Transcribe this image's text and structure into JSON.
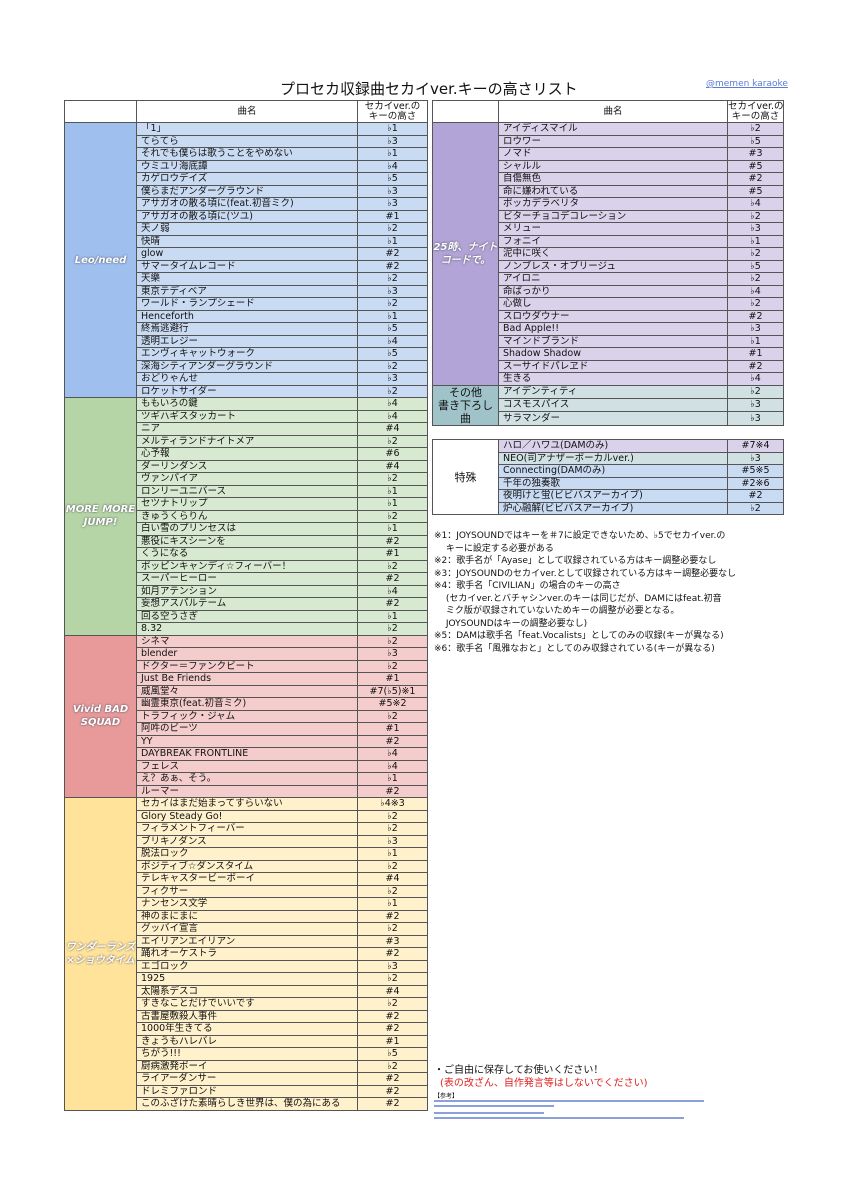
{
  "title": "プロセカ収録曲セカイver.キーの高さリスト",
  "handle": "@memen karaoke",
  "headers": {
    "name": "曲名",
    "key": "セカイver.の\nキーの高さ"
  },
  "colors": {
    "leo": [
      "#9fbfee",
      "#c9daf3"
    ],
    "mmj": [
      "#b5d5a6",
      "#d8e9d1"
    ],
    "vbs": [
      "#e89a9a",
      "#f5cccc"
    ],
    "wxs": [
      "#ffe39a",
      "#fff1cb"
    ],
    "niigo": [
      "#b2a4d6",
      "#d9d2ea"
    ],
    "other": [
      "#9fc3c8",
      "#d1e1e3"
    ]
  },
  "left_groups": [
    {
      "id": "leo",
      "label": "Leo/need",
      "songs": [
        [
          "「1」",
          "♭1"
        ],
        [
          "てらてら",
          "♭3"
        ],
        [
          "それでも僕らは歌うことをやめない",
          "♭1"
        ],
        [
          "ウミユリ海底譚",
          "♭4"
        ],
        [
          "カゲロウデイズ",
          "♭5"
        ],
        [
          "僕らまだアンダーグラウンド",
          "♭3"
        ],
        [
          "アサガオの散る頃に(feat.初音ミク)",
          "♭3"
        ],
        [
          "アサガオの散る頃に(ツユ)",
          "#1"
        ],
        [
          "天ノ弱",
          "♭2"
        ],
        [
          "快晴",
          "♭1"
        ],
        [
          "glow",
          "#2"
        ],
        [
          "サマータイムレコード",
          "#2"
        ],
        [
          "天樂",
          "♭2"
        ],
        [
          "東京テディベア",
          "♭3"
        ],
        [
          "ワールド・ランプシェード",
          "♭2"
        ],
        [
          "Henceforth",
          "♭1"
        ],
        [
          "終焉逃避行",
          "♭5"
        ],
        [
          "透明エレジー",
          "♭4"
        ],
        [
          "エンヴィキャットウォーク",
          "♭5"
        ],
        [
          "深海シティアンダーグラウンド",
          "♭2"
        ],
        [
          "おどりゃんせ",
          "♭3"
        ],
        [
          "ロケットサイダー",
          "♭2"
        ]
      ]
    },
    {
      "id": "mmj",
      "label": "MORE MORE JUMP!",
      "songs": [
        [
          "ももいろの鍵",
          "♭4"
        ],
        [
          "ツギハギスタッカート",
          "♭4"
        ],
        [
          "ニア",
          "#4"
        ],
        [
          "メルティランドナイトメア",
          "♭2"
        ],
        [
          "心予報",
          "#6"
        ],
        [
          "ダーリンダンス",
          "#4"
        ],
        [
          "ヴァンパイア",
          "♭2"
        ],
        [
          "ロンリーユニバース",
          "♭1"
        ],
        [
          "セツナトリップ",
          "♭1"
        ],
        [
          "きゅうくらりん",
          "♭2"
        ],
        [
          "白い雪のプリンセスは",
          "♭1"
        ],
        [
          "悪役にキスシーンを",
          "#2"
        ],
        [
          "くうになる",
          "#1"
        ],
        [
          "ポッピンキャンディ☆フィーバー！",
          "♭2"
        ],
        [
          "スーパーヒーロー",
          "#2"
        ],
        [
          "如月アテンション",
          "♭4"
        ],
        [
          "妄想アスパルテーム",
          "#2"
        ],
        [
          "回る空うさぎ",
          "♭1"
        ],
        [
          "8.32",
          "♭2"
        ]
      ]
    },
    {
      "id": "vbs",
      "label": "Vivid BAD SQUAD",
      "songs": [
        [
          "シネマ",
          "♭2"
        ],
        [
          "blender",
          "♭3"
        ],
        [
          "ドクター＝ファンクビート",
          "♭2"
        ],
        [
          "Just Be Friends",
          "#1"
        ],
        [
          "威風堂々",
          "#7(♭5)※1"
        ],
        [
          "幽霊東京(feat.初音ミク)",
          "#5※2"
        ],
        [
          "トラフィック・ジャム",
          "♭2"
        ],
        [
          "阿吽のビーツ",
          "#1"
        ],
        [
          "YY",
          "#2"
        ],
        [
          "DAYBREAK FRONTLINE",
          "♭4"
        ],
        [
          "フェレス",
          "♭4"
        ],
        [
          "え？あぁ、そう。",
          "♭1"
        ],
        [
          "ルーマー",
          "#2"
        ]
      ]
    },
    {
      "id": "wxs",
      "label": "ワンダーランズ×ショウタイム",
      "songs": [
        [
          "セカイはまだ始まってすらいない",
          "♭4※3"
        ],
        [
          "Glory Steady Go!",
          "♭2"
        ],
        [
          "フィラメントフィーバー",
          "♭2"
        ],
        [
          "ブリキノダンス",
          "♭3"
        ],
        [
          "脱法ロック",
          "♭1"
        ],
        [
          "ポジティブ☆ダンスタイム",
          "♭2"
        ],
        [
          "テレキャスタービーボーイ",
          "#4"
        ],
        [
          "フィクサー",
          "♭2"
        ],
        [
          "ナンセンス文学",
          "♭1"
        ],
        [
          "神のまにまに",
          "#2"
        ],
        [
          "グッバイ宣言",
          "♭2"
        ],
        [
          "エイリアンエイリアン",
          "#3"
        ],
        [
          "踊れオーケストラ",
          "#2"
        ],
        [
          "エゴロック",
          "♭3"
        ],
        [
          "1925",
          "♭2"
        ],
        [
          "太陽系デスコ",
          "#4"
        ],
        [
          "すきなことだけでいいです",
          "♭2"
        ],
        [
          "古書屋敷殺人事件",
          "#2"
        ],
        [
          "1000年生きてる",
          "#2"
        ],
        [
          "きょうもハレバレ",
          "#1"
        ],
        [
          "ちがう!!!",
          "♭5"
        ],
        [
          "厨病激発ボーイ",
          "♭2"
        ],
        [
          "ライアーダンサー",
          "#2"
        ],
        [
          "ドレミファロンド",
          "#2"
        ],
        [
          "このふざけた素晴らしき世界は、僕の為にある",
          "#2"
        ]
      ]
    }
  ],
  "right_groups": [
    {
      "id": "niigo",
      "label": "25時、ナイトコードで。",
      "songs": [
        [
          "アイディスマイル",
          "♭2"
        ],
        [
          "ロウワー",
          "♭5"
        ],
        [
          "ノマド",
          "#3"
        ],
        [
          "シャルル",
          "#5"
        ],
        [
          "自傷無色",
          "#2"
        ],
        [
          "命に嫌われている",
          "#5"
        ],
        [
          "ポッカデラベリタ",
          "♭4"
        ],
        [
          "ビターチョコデコレーション",
          "♭2"
        ],
        [
          "メリュー",
          "♭3"
        ],
        [
          "フォニイ",
          "♭1"
        ],
        [
          "泥中に咲く",
          "♭2"
        ],
        [
          "ノンブレス・オブリージュ",
          "♭5"
        ],
        [
          "アイロニ",
          "♭2"
        ],
        [
          "命ばっかり",
          "♭4"
        ],
        [
          "心做し",
          "♭2"
        ],
        [
          "スロウダウナー",
          "#2"
        ],
        [
          "Bad Apple!!",
          "♭3"
        ],
        [
          "マインドブランド",
          "♭1"
        ],
        [
          "Shadow Shadow",
          "#1"
        ],
        [
          "スーサイドパレヱド",
          "#2"
        ],
        [
          "生きる",
          "♭4"
        ]
      ]
    },
    {
      "id": "other",
      "label": "その他\n書き下ろし曲",
      "songs": [
        [
          "アイデンティティ",
          "♭2"
        ],
        [
          "コスモスパイス",
          "♭3"
        ],
        [
          "サラマンダー",
          "♭3"
        ]
      ]
    }
  ],
  "special": {
    "label": "特殊",
    "songs": [
      [
        "ハロ／ハワユ(DAMのみ)",
        "#7※4",
        "niigo"
      ],
      [
        "NEO(司アナザーボーカルver.)",
        "♭3",
        "other"
      ],
      [
        "Connecting(DAMのみ)",
        "#5※5",
        "leo"
      ],
      [
        "千年の独奏歌",
        "#2※6",
        "leo"
      ],
      [
        "夜明けと蛍(ビビバスアーカイブ)",
        "#2",
        "leo"
      ],
      [
        "炉心融解(ビビバスアーカイブ)",
        "♭2",
        "leo"
      ]
    ]
  },
  "notes": [
    "※1：JOYSOUNDではキーを＃7に設定できないため、♭5でセカイver.の",
    "　 キーに設定する必要がある",
    "※2：歌手名が「Ayase」として収録されている方はキー調整必要なし",
    "※3：JOYSOUNDのセカイver.として収録されている方はキー調整必要なし",
    "※4：歌手名「CIVILIAN」の場合のキーの高さ",
    "　 (セカイver.とバチャシンver.のキーは同じだが、DAMにはfeat.初音",
    "　 ミク版が収録されていないためキーの調整が必要となる。",
    "　 JOYSOUNDはキーの調整必要なし)",
    "※5：DAMは歌手名「feat.Vocalists」としてのみの収録(キーが異なる)",
    "※6：歌手名「風雅なおと」としてのみ収録されている(キーが異なる)"
  ],
  "footer": {
    "line1": "・ご自由に保存してお使いください！",
    "line2": "(表の改ざん、自作発言等はしないでください)",
    "ref_label": "【参考】"
  }
}
